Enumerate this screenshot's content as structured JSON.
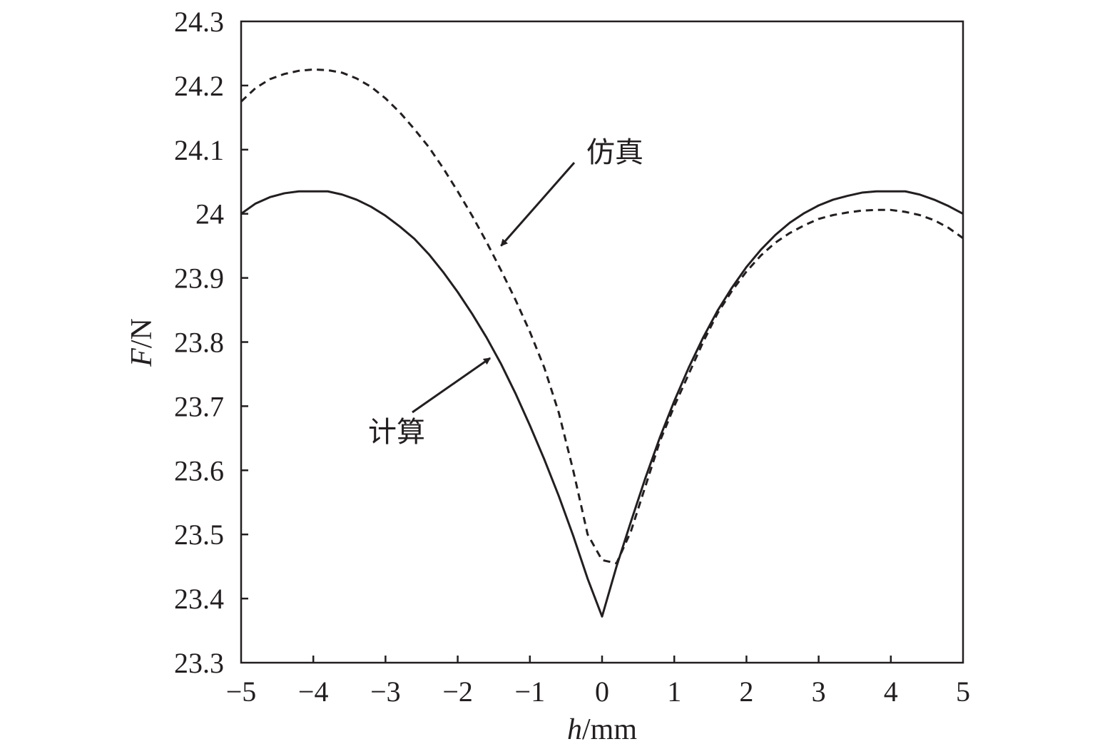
{
  "chart_data": {
    "type": "line",
    "xlabel": {
      "italic": "h",
      "rest": "/mm"
    },
    "ylabel": {
      "italic": "F",
      "rest": "/N"
    },
    "xlim": [
      -5,
      5
    ],
    "ylim": [
      23.3,
      24.3
    ],
    "xticks": [
      -5,
      -4,
      -3,
      -2,
      -1,
      0,
      1,
      2,
      3,
      4,
      5
    ],
    "xtick_labels": [
      "−5",
      "−4",
      "−3",
      "−2",
      "−1",
      "0",
      "1",
      "2",
      "3",
      "4",
      "5"
    ],
    "yticks": [
      23.3,
      23.4,
      23.5,
      23.6,
      23.7,
      23.8,
      23.9,
      24.0,
      24.1,
      24.2,
      24.3
    ],
    "ytick_labels": [
      "23.3",
      "23.4",
      "23.5",
      "23.6",
      "23.7",
      "23.8",
      "23.9",
      "24",
      "24.1",
      "24.2",
      "24.3"
    ],
    "grid": false,
    "series": [
      {
        "name": "计算",
        "style": "solid",
        "color": "#231f20",
        "points": [
          [
            -5.0,
            24.0
          ],
          [
            -4.8,
            24.016
          ],
          [
            -4.6,
            24.026
          ],
          [
            -4.4,
            24.032
          ],
          [
            -4.2,
            24.035
          ],
          [
            -4.0,
            24.035
          ],
          [
            -3.8,
            24.035
          ],
          [
            -3.6,
            24.03
          ],
          [
            -3.4,
            24.022
          ],
          [
            -3.2,
            24.011
          ],
          [
            -3.0,
            23.997
          ],
          [
            -2.8,
            23.98
          ],
          [
            -2.6,
            23.961
          ],
          [
            -2.4,
            23.937
          ],
          [
            -2.2,
            23.909
          ],
          [
            -2.0,
            23.878
          ],
          [
            -1.8,
            23.844
          ],
          [
            -1.6,
            23.807
          ],
          [
            -1.4,
            23.766
          ],
          [
            -1.2,
            23.72
          ],
          [
            -1.0,
            23.67
          ],
          [
            -0.8,
            23.617
          ],
          [
            -0.6,
            23.56
          ],
          [
            -0.4,
            23.498
          ],
          [
            -0.2,
            23.431
          ],
          [
            0.0,
            23.372
          ],
          [
            0.2,
            23.45
          ],
          [
            0.4,
            23.52
          ],
          [
            0.6,
            23.588
          ],
          [
            0.8,
            23.651
          ],
          [
            1.0,
            23.708
          ],
          [
            1.2,
            23.76
          ],
          [
            1.4,
            23.807
          ],
          [
            1.6,
            23.849
          ],
          [
            1.8,
            23.885
          ],
          [
            2.0,
            23.917
          ],
          [
            2.2,
            23.944
          ],
          [
            2.4,
            23.967
          ],
          [
            2.6,
            23.986
          ],
          [
            2.8,
            24.001
          ],
          [
            3.0,
            24.013
          ],
          [
            3.2,
            24.022
          ],
          [
            3.4,
            24.028
          ],
          [
            3.6,
            24.033
          ],
          [
            3.8,
            24.035
          ],
          [
            4.0,
            24.035
          ],
          [
            4.2,
            24.035
          ],
          [
            4.4,
            24.03
          ],
          [
            4.6,
            24.022
          ],
          [
            4.8,
            24.012
          ],
          [
            5.0,
            24.0
          ]
        ]
      },
      {
        "name": "仿真",
        "style": "dashed",
        "color": "#231f20",
        "points": [
          [
            -5.0,
            24.175
          ],
          [
            -4.8,
            24.196
          ],
          [
            -4.6,
            24.21
          ],
          [
            -4.4,
            24.218
          ],
          [
            -4.2,
            24.223
          ],
          [
            -4.0,
            24.225
          ],
          [
            -3.8,
            24.224
          ],
          [
            -3.6,
            24.22
          ],
          [
            -3.4,
            24.211
          ],
          [
            -3.2,
            24.198
          ],
          [
            -3.0,
            24.18
          ],
          [
            -2.8,
            24.158
          ],
          [
            -2.6,
            24.132
          ],
          [
            -2.4,
            24.104
          ],
          [
            -2.2,
            24.071
          ],
          [
            -2.0,
            24.035
          ],
          [
            -1.8,
            23.997
          ],
          [
            -1.6,
            23.956
          ],
          [
            -1.4,
            23.912
          ],
          [
            -1.2,
            23.866
          ],
          [
            -1.0,
            23.816
          ],
          [
            -0.8,
            23.76
          ],
          [
            -0.6,
            23.69
          ],
          [
            -0.4,
            23.6
          ],
          [
            -0.2,
            23.5
          ],
          [
            0.0,
            23.46
          ],
          [
            0.2,
            23.455
          ],
          [
            0.4,
            23.505
          ],
          [
            0.6,
            23.575
          ],
          [
            0.8,
            23.645
          ],
          [
            1.0,
            23.7
          ],
          [
            1.2,
            23.75
          ],
          [
            1.4,
            23.8
          ],
          [
            1.6,
            23.845
          ],
          [
            1.8,
            23.88
          ],
          [
            2.0,
            23.91
          ],
          [
            2.2,
            23.935
          ],
          [
            2.4,
            23.955
          ],
          [
            2.6,
            23.97
          ],
          [
            2.8,
            23.982
          ],
          [
            3.0,
            23.992
          ],
          [
            3.2,
            23.998
          ],
          [
            3.4,
            24.002
          ],
          [
            3.6,
            24.005
          ],
          [
            3.8,
            24.006
          ],
          [
            4.0,
            24.006
          ],
          [
            4.2,
            24.003
          ],
          [
            4.4,
            23.998
          ],
          [
            4.6,
            23.99
          ],
          [
            4.8,
            23.978
          ],
          [
            5.0,
            23.962
          ]
        ]
      }
    ],
    "annotations": [
      {
        "text": "仿真",
        "target": [
          -1.4,
          23.95
        ]
      },
      {
        "text": "计算",
        "target": [
          -1.55,
          23.775
        ]
      }
    ]
  }
}
